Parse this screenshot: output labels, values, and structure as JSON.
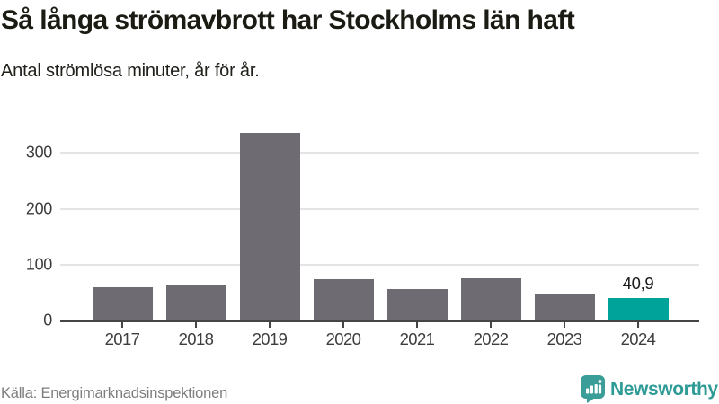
{
  "chart_data": {
    "type": "bar",
    "title": "Så långa strömavbrott har Stockholms län haft",
    "subtitle": "Antal strömlösa minuter, år för år.",
    "categories": [
      "2017",
      "2018",
      "2019",
      "2020",
      "2021",
      "2022",
      "2023",
      "2024"
    ],
    "values": [
      60,
      65,
      336,
      74,
      57,
      76,
      49,
      40.9
    ],
    "ylim": [
      0,
      341
    ],
    "yticks": [
      0,
      100,
      200,
      300
    ],
    "grid": true,
    "legend": "none",
    "xlabel": "",
    "ylabel": "",
    "bar_color": "#6E6C72",
    "highlight_index": 7,
    "highlight_color": "#00A39A",
    "highlight_label": "40,9",
    "axis_color": "#454548",
    "gridline_color": "#E4E4E6",
    "tick_label_color": "#3D3D3D"
  },
  "footer": {
    "source": "Källa: Energimarknadsinspektionen",
    "brand": "Newsworthy",
    "brand_color": "#2F9B96"
  }
}
